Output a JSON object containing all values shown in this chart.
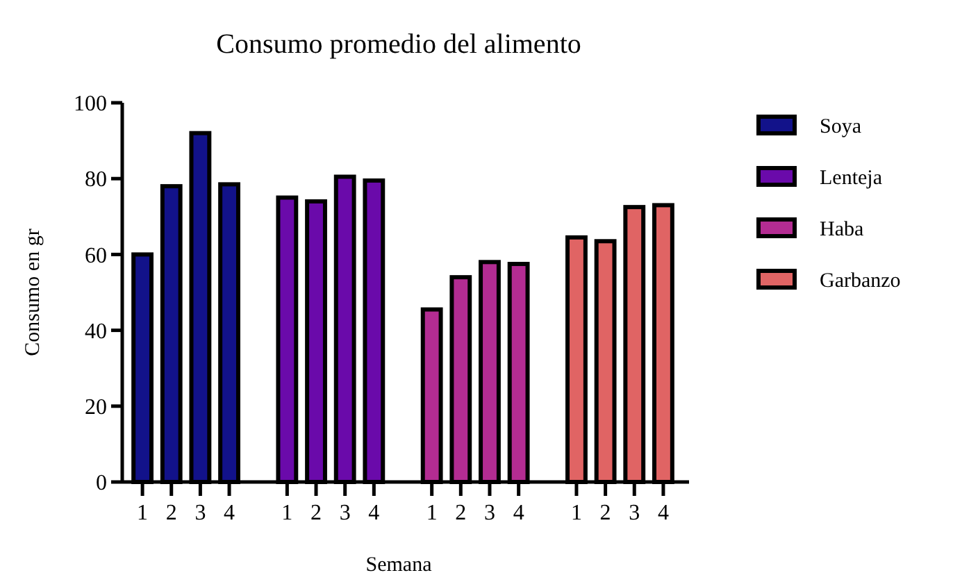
{
  "chart_data": {
    "type": "bar",
    "title": "Consumo promedio del alimento",
    "xlabel": "Semana",
    "ylabel": "Consumo  en gr",
    "categories": [
      "1",
      "2",
      "3",
      "4",
      null,
      "1",
      "2",
      "3",
      "4",
      null,
      "1",
      "2",
      "3",
      "4",
      null,
      "1",
      "2",
      "3",
      "4"
    ],
    "series": [
      {
        "name": "Soya",
        "color": "#12128a",
        "values": [
          60,
          78,
          92,
          78.5,
          null,
          null,
          null,
          null,
          null,
          null,
          null,
          null,
          null,
          null,
          null,
          null,
          null,
          null,
          null
        ]
      },
      {
        "name": "Lenteja",
        "color": "#6a0aaa",
        "values": [
          null,
          null,
          null,
          null,
          null,
          75,
          74,
          80.5,
          79.5,
          null,
          null,
          null,
          null,
          null,
          null,
          null,
          null,
          null,
          null
        ]
      },
      {
        "name": "Haba",
        "color": "#b32c92",
        "values": [
          null,
          null,
          null,
          null,
          null,
          null,
          null,
          null,
          null,
          null,
          45.5,
          54,
          58,
          57.5,
          null,
          null,
          null,
          null,
          null
        ]
      },
      {
        "name": "Garbanzo",
        "color": "#e06464",
        "values": [
          null,
          null,
          null,
          null,
          null,
          null,
          null,
          null,
          null,
          null,
          null,
          null,
          null,
          null,
          null,
          64.5,
          63.5,
          72.5,
          73
        ]
      }
    ],
    "ylim": [
      0,
      100
    ],
    "yticks": [
      0,
      20,
      40,
      60,
      80,
      100
    ],
    "grid": false,
    "legend": "right"
  }
}
